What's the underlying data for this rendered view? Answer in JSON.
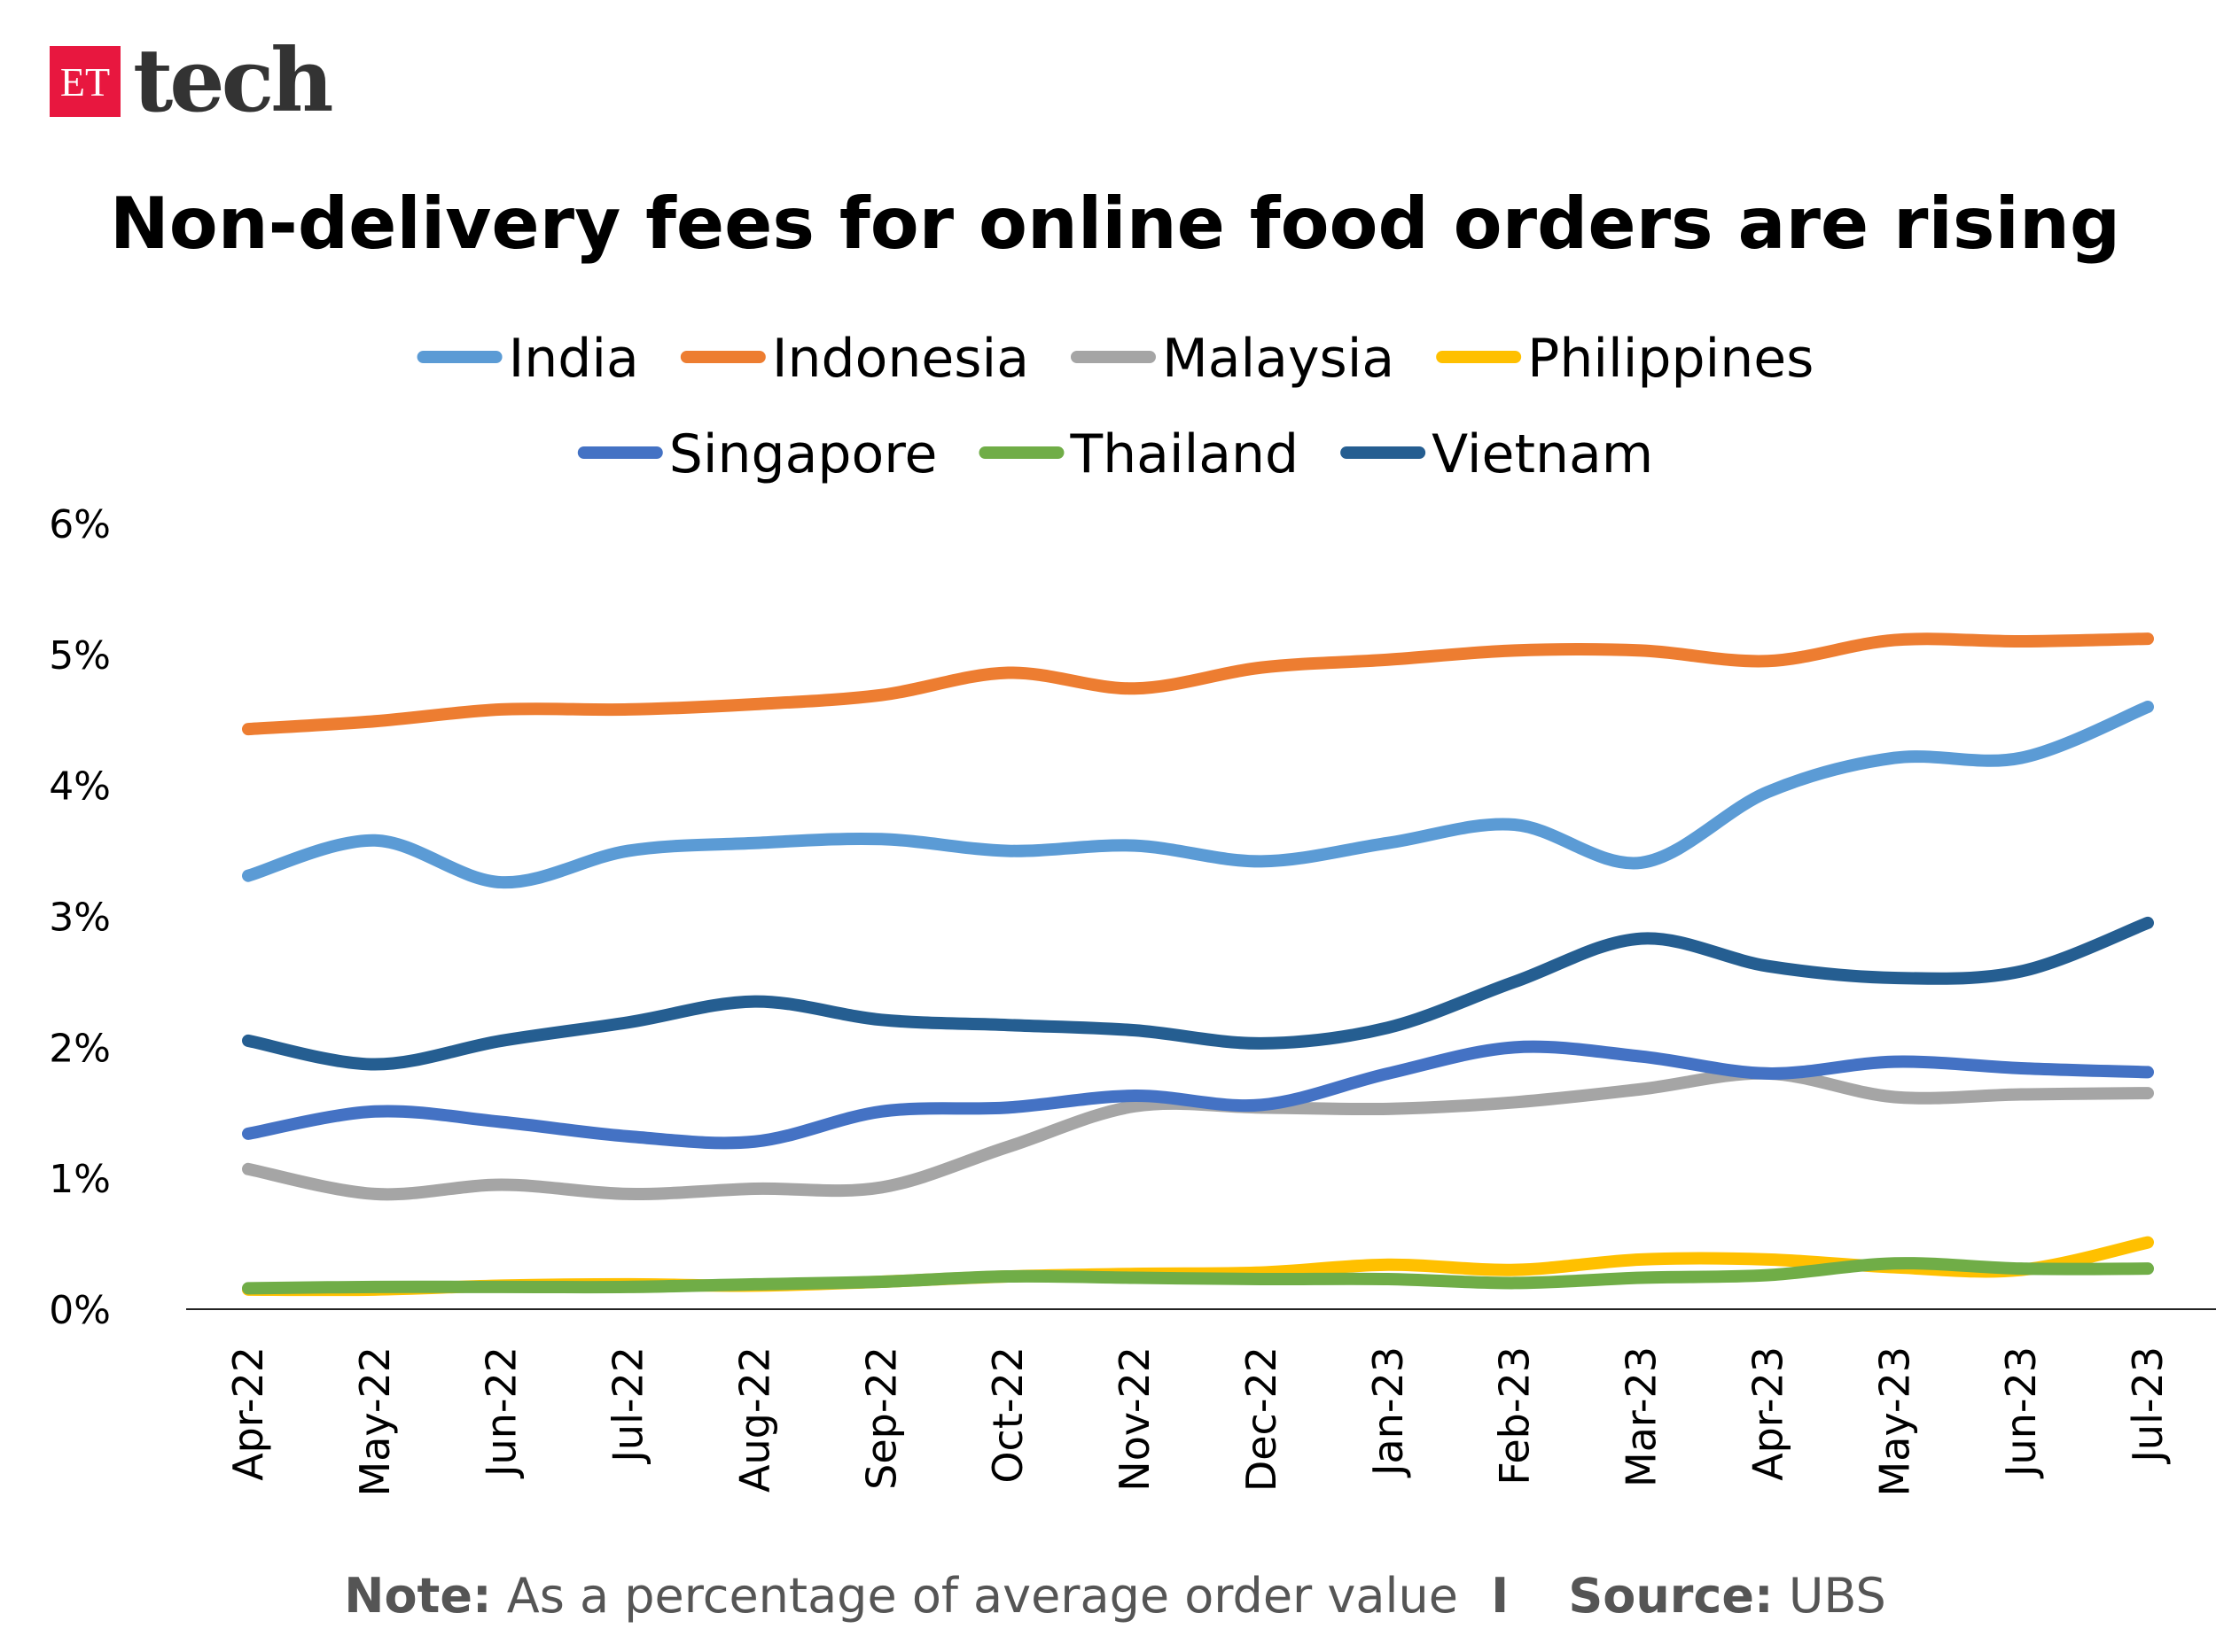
{
  "logo": {
    "mark": "ET",
    "text": "tech",
    "brand_color": "#e8173f"
  },
  "chart_data": {
    "type": "line",
    "title": "Non-delivery fees for online food orders are rising",
    "xlabel": "",
    "ylabel": "",
    "ylim": [
      0,
      6
    ],
    "yticks": [
      "0%",
      "1%",
      "2%",
      "3%",
      "4%",
      "5%",
      "6%"
    ],
    "grid": false,
    "legend": "top",
    "categories": [
      "Apr-22",
      "May-22",
      "Jun-22",
      "Jul-22",
      "Aug-22",
      "Sep-22",
      "Oct-22",
      "Nov-22",
      "Dec-22",
      "Jan-23",
      "Feb-23",
      "Mar-23",
      "Apr-23",
      "May-23",
      "Jun-23",
      "Jul-23"
    ],
    "series": [
      {
        "name": "India",
        "color": "#5b9bd5",
        "values": [
          3.31,
          3.58,
          3.26,
          3.5,
          3.56,
          3.59,
          3.5,
          3.54,
          3.42,
          3.56,
          3.7,
          3.41,
          3.95,
          4.21,
          4.21,
          4.6
        ]
      },
      {
        "name": "Indonesia",
        "color": "#ed7d31",
        "values": [
          4.43,
          4.49,
          4.58,
          4.58,
          4.62,
          4.69,
          4.86,
          4.74,
          4.9,
          4.96,
          5.03,
          5.03,
          4.95,
          5.11,
          5.1,
          5.12
        ]
      },
      {
        "name": "Malaysia",
        "color": "#a5a5a5",
        "values": [
          1.07,
          0.88,
          0.95,
          0.88,
          0.92,
          0.93,
          1.24,
          1.55,
          1.54,
          1.53,
          1.58,
          1.68,
          1.8,
          1.62,
          1.64,
          1.65
        ]
      },
      {
        "name": "Philippines",
        "color": "#ffc000",
        "values": [
          0.15,
          0.15,
          0.18,
          0.19,
          0.18,
          0.21,
          0.25,
          0.27,
          0.28,
          0.34,
          0.3,
          0.38,
          0.38,
          0.32,
          0.3,
          0.51
        ]
      },
      {
        "name": "Singapore",
        "color": "#4472c4",
        "values": [
          1.34,
          1.51,
          1.43,
          1.32,
          1.28,
          1.51,
          1.54,
          1.63,
          1.56,
          1.8,
          2.0,
          1.93,
          1.8,
          1.89,
          1.84,
          1.81
        ]
      },
      {
        "name": "Thailand",
        "color": "#70ad47",
        "values": [
          0.16,
          0.17,
          0.17,
          0.17,
          0.19,
          0.21,
          0.25,
          0.24,
          0.23,
          0.23,
          0.2,
          0.24,
          0.26,
          0.35,
          0.31,
          0.31
        ]
      },
      {
        "name": "Vietnam",
        "color": "#255e91",
        "values": [
          2.05,
          1.87,
          2.05,
          2.19,
          2.35,
          2.21,
          2.17,
          2.13,
          2.03,
          2.15,
          2.5,
          2.83,
          2.62,
          2.53,
          2.58,
          2.95
        ]
      }
    ],
    "note_label": "Note:",
    "note_text": "As a percentage of average order value",
    "separator": "I",
    "source_label": "Source:",
    "source_text": "UBS"
  }
}
